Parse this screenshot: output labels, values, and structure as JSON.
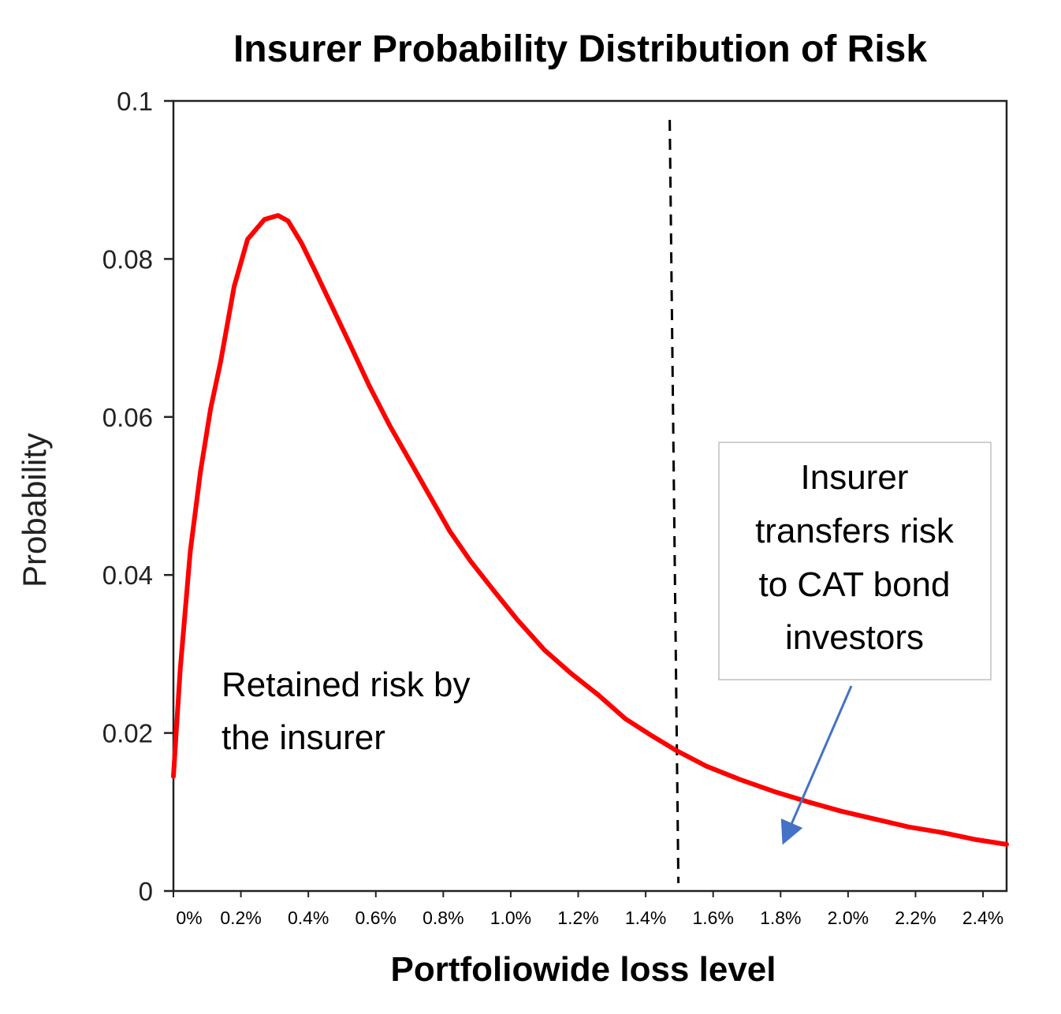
{
  "chart_data": {
    "type": "line",
    "title": "Insurer Probability Distribution of Risk",
    "xlabel": "Portfoliowide loss level",
    "ylabel": "Probability",
    "xlim": [
      0.0,
      2.47
    ],
    "ylim": [
      0,
      0.1
    ],
    "x_ticks": [
      0.0,
      0.2,
      0.4,
      0.6,
      0.8,
      1.0,
      1.2,
      1.4,
      1.6,
      1.8,
      2.0,
      2.2,
      2.4
    ],
    "x_tick_labels": [
      "0%",
      "0.2%",
      "0.4%",
      "0.6%",
      "0.8%",
      "1.0%",
      "1.2%",
      "1.4%",
      "1.6%",
      "1.8%",
      "2.0%",
      "2.2%",
      "2.4%"
    ],
    "y_ticks": [
      0,
      0.02,
      0.04,
      0.06,
      0.08,
      0.1
    ],
    "y_tick_labels": [
      "0",
      "0.02",
      "0.04",
      "0.06",
      "0.08",
      "0.1"
    ],
    "grid": false,
    "series": [
      {
        "color": "#ff0000",
        "x": [
          0.0,
          0.02,
          0.05,
          0.08,
          0.11,
          0.14,
          0.18,
          0.22,
          0.27,
          0.31,
          0.34,
          0.38,
          0.42,
          0.47,
          0.52,
          0.58,
          0.64,
          0.7,
          0.76,
          0.82,
          0.88,
          0.95,
          1.02,
          1.1,
          1.18,
          1.26,
          1.34,
          1.42,
          1.49,
          1.58,
          1.68,
          1.78,
          1.88,
          1.98,
          2.08,
          2.18,
          2.28,
          2.38,
          2.47
        ],
        "y": [
          0.0145,
          0.028,
          0.043,
          0.053,
          0.061,
          0.067,
          0.0765,
          0.0825,
          0.085,
          0.0855,
          0.0848,
          0.082,
          0.0785,
          0.074,
          0.0695,
          0.064,
          0.059,
          0.0545,
          0.05,
          0.0455,
          0.0418,
          0.038,
          0.0343,
          0.0305,
          0.0275,
          0.0248,
          0.0218,
          0.0196,
          0.0178,
          0.0158,
          0.0141,
          0.0126,
          0.0113,
          0.0101,
          0.0091,
          0.0081,
          0.0074,
          0.0065,
          0.0059
        ]
      }
    ],
    "threshold_x": 1.49,
    "annotations": {
      "retained": [
        "Retained risk by",
        "the insurer"
      ],
      "transfer": [
        "Insurer",
        "transfers risk",
        "to CAT bond",
        "investors"
      ]
    },
    "colors": {
      "curve": "#ff0000",
      "arrow": "#4472c4",
      "axis": "#222222",
      "box_border": "#bfbfbf"
    }
  }
}
